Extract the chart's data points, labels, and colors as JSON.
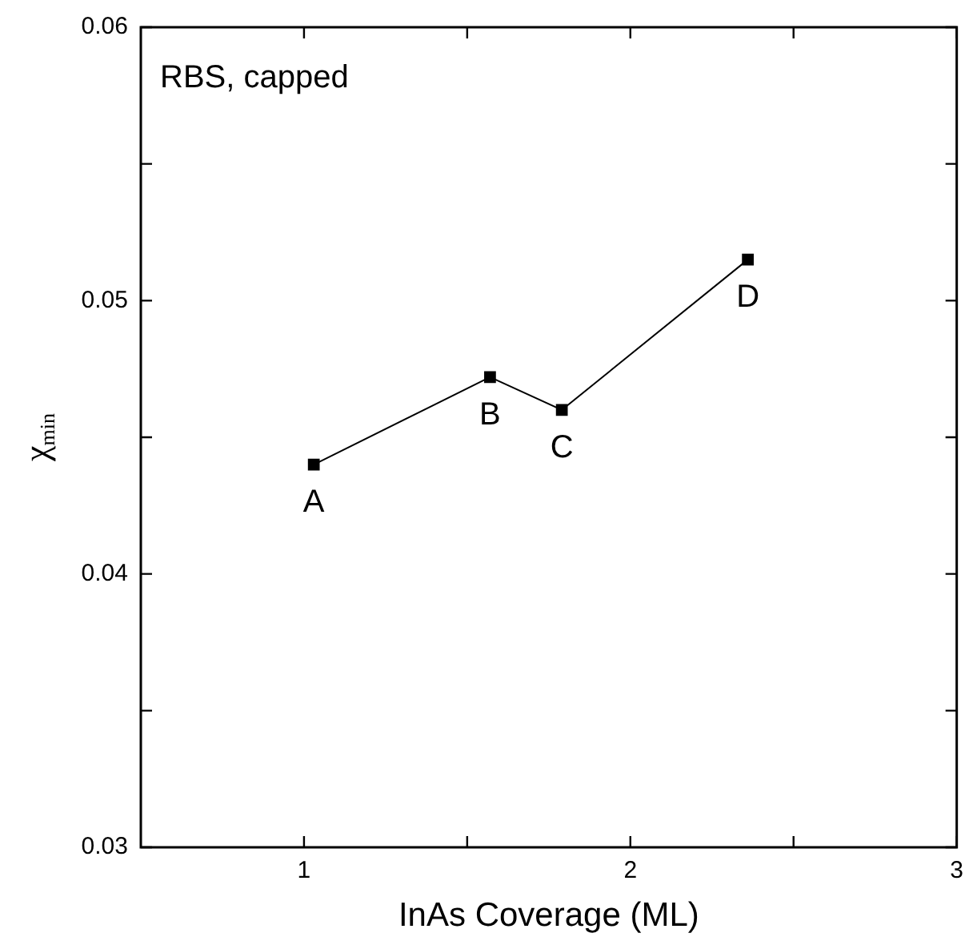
{
  "chart_data": {
    "type": "line",
    "xlabel": "InAs Coverage (ML)",
    "ylabel": "χ$_{min}$",
    "x": [
      1.03,
      1.57,
      1.79,
      2.36
    ],
    "series": [
      {
        "color": "#000000",
        "values": [
          0.044,
          0.0472,
          0.046,
          0.0515
        ]
      }
    ],
    "xlim": [
      0.5,
      3
    ],
    "xticks": [
      1,
      {
        "value": 1.5,
        "label": null
      },
      2,
      {
        "value": 2.5,
        "label": null
      },
      3
    ],
    "ylim": [
      0.03,
      0.06
    ],
    "yticks": [
      0.03,
      {
        "value": 0.035,
        "label": null
      },
      0.04,
      {
        "value": 0.045,
        "label": null
      },
      0.05,
      {
        "value": 0.055,
        "label": null
      },
      0.06
    ],
    "grid": false,
    "legend": false,
    "marker": "square",
    "line_style": "solid",
    "annotations": [
      "RBS, capped",
      {
        "text": "A",
        "x": 1.03,
        "y": 0.044
      },
      {
        "text": "B",
        "x": 1.57,
        "y": 0.0472
      },
      {
        "text": "C",
        "x": 1.79,
        "y": 0.046
      },
      {
        "text": "D",
        "x": 2.36,
        "y": 0.0515
      }
    ]
  }
}
